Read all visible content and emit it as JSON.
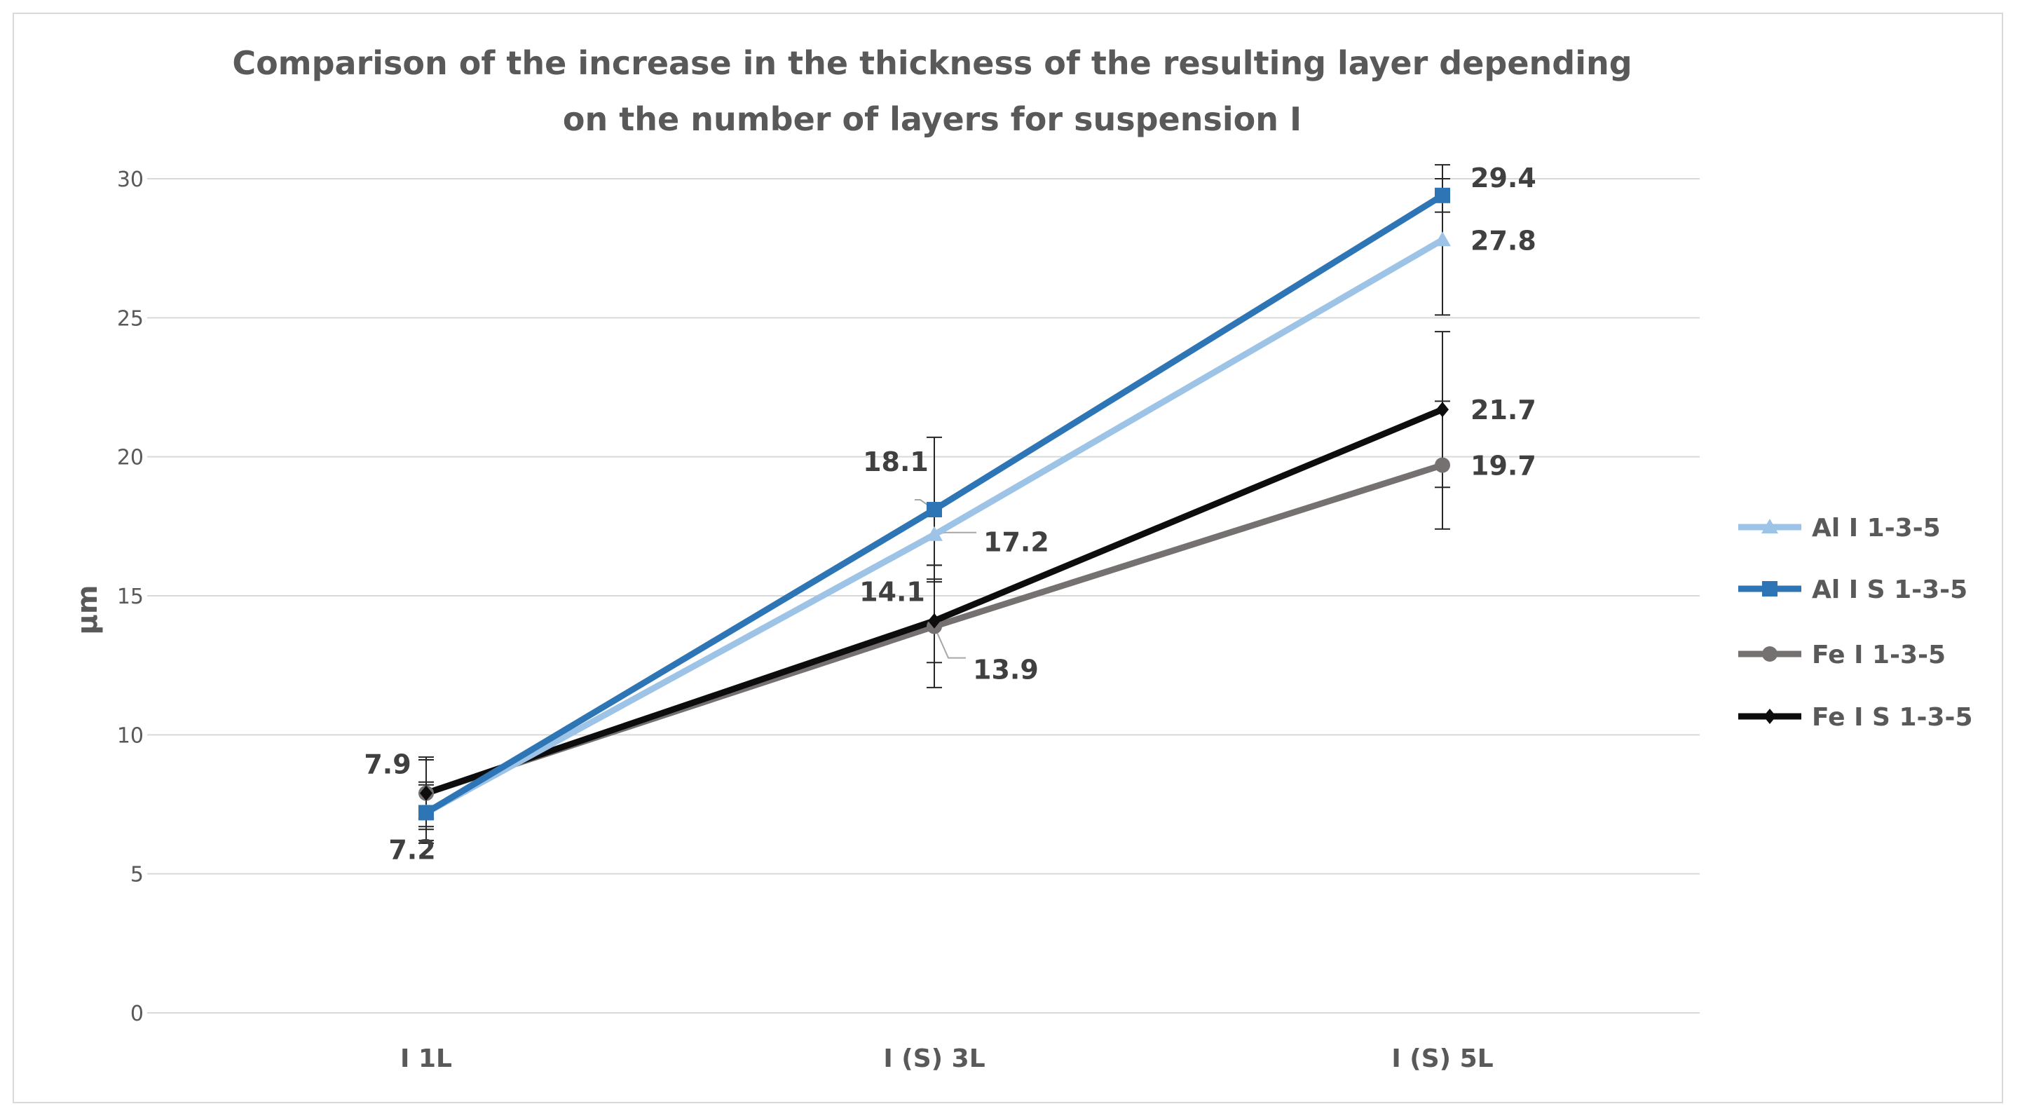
{
  "chart_data": {
    "type": "line",
    "title": "Comparison of the increase in the thickness of the resulting layer depending on the number of layers for suspension I",
    "xlabel": "",
    "ylabel": "µm",
    "ylim": [
      0,
      30
    ],
    "yticks": [
      0,
      5,
      10,
      15,
      20,
      25,
      30
    ],
    "grid": true,
    "legend_position": "right",
    "categories": [
      "I 1L",
      "I (S) 3L",
      "I (S) 5L"
    ],
    "series": [
      {
        "name": "Al I 1-3-5",
        "values": [
          7.2,
          17.2,
          27.8
        ],
        "errors": [
          1.0,
          1.1,
          2.7
        ],
        "color": "#9dc3e6",
        "marker": "triangle",
        "labels": [
          "",
          "17.2",
          "27.8"
        ]
      },
      {
        "name": "Al I S 1-3-5",
        "values": [
          7.2,
          18.1,
          29.4
        ],
        "errors": [
          1.1,
          2.6,
          0.6
        ],
        "color": "#2e75b6",
        "marker": "square",
        "labels": [
          "7.2",
          "18.1",
          "29.4"
        ]
      },
      {
        "name": "Fe I 1-3-5",
        "values": [
          7.9,
          13.9,
          19.7
        ],
        "errors": [
          1.2,
          2.2,
          2.3
        ],
        "color": "#767171",
        "marker": "circle",
        "labels": [
          "",
          "13.9",
          "19.7"
        ]
      },
      {
        "name": "Fe I S 1-3-5",
        "values": [
          7.9,
          14.1,
          21.7
        ],
        "errors": [
          1.3,
          1.5,
          2.8
        ],
        "color": "#0d0d0d",
        "marker": "diamond",
        "labels": [
          "7.9",
          "14.1",
          "21.7"
        ]
      }
    ]
  }
}
